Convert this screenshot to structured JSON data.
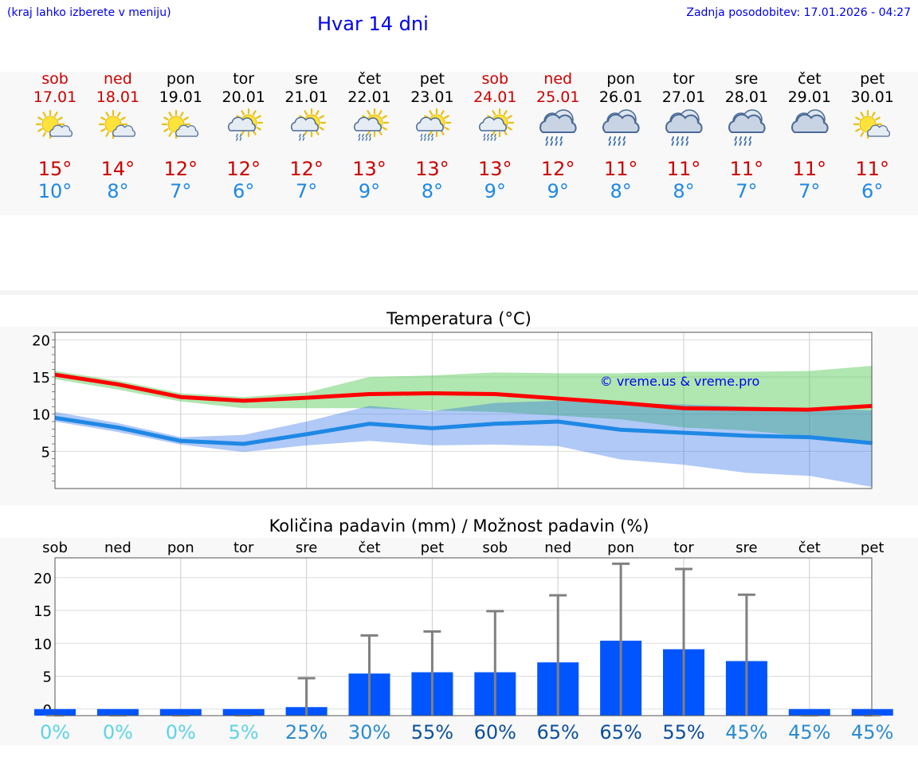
{
  "header": {
    "location_hint": "(kraj lahko izberete v meniju)",
    "title": "Hvar 14 dni",
    "updated": "Zadnja posodobitev: 17.01.2026 - 04:27"
  },
  "colors": {
    "weekend": "#cc0000",
    "weekday": "#000000",
    "max_temp": "#ff0000",
    "min_temp": "#1e88e5",
    "bar": "#0055ff",
    "link": "#0000ee"
  },
  "days": [
    {
      "name": "sob",
      "date": "17.01",
      "max": "15°",
      "min": "10°",
      "weekend": true,
      "icon": "sun-cloud-icon"
    },
    {
      "name": "ned",
      "date": "18.01",
      "max": "14°",
      "min": "8°",
      "weekend": true,
      "icon": "sun-cloud-icon"
    },
    {
      "name": "pon",
      "date": "19.01",
      "max": "12°",
      "min": "7°",
      "weekend": false,
      "icon": "sun-cloud-icon"
    },
    {
      "name": "tor",
      "date": "20.01",
      "max": "12°",
      "min": "6°",
      "weekend": false,
      "icon": "sun-cloud-light-rain-icon"
    },
    {
      "name": "sre",
      "date": "21.01",
      "max": "12°",
      "min": "7°",
      "weekend": false,
      "icon": "sun-cloud-light-rain-icon"
    },
    {
      "name": "čet",
      "date": "22.01",
      "max": "13°",
      "min": "9°",
      "weekend": false,
      "icon": "sun-cloud-rain-icon"
    },
    {
      "name": "pet",
      "date": "23.01",
      "max": "13°",
      "min": "8°",
      "weekend": false,
      "icon": "sun-cloud-rain-icon"
    },
    {
      "name": "sob",
      "date": "24.01",
      "max": "13°",
      "min": "9°",
      "weekend": true,
      "icon": "sun-cloud-rain-icon"
    },
    {
      "name": "ned",
      "date": "25.01",
      "max": "12°",
      "min": "9°",
      "weekend": true,
      "icon": "cloud-rain-icon"
    },
    {
      "name": "pon",
      "date": "26.01",
      "max": "11°",
      "min": "8°",
      "weekend": false,
      "icon": "cloud-rain-icon"
    },
    {
      "name": "tor",
      "date": "27.01",
      "max": "11°",
      "min": "8°",
      "weekend": false,
      "icon": "cloud-rain-icon"
    },
    {
      "name": "sre",
      "date": "28.01",
      "max": "11°",
      "min": "7°",
      "weekend": false,
      "icon": "cloud-rain-icon"
    },
    {
      "name": "čet",
      "date": "29.01",
      "max": "11°",
      "min": "7°",
      "weekend": false,
      "icon": "cloud-icon"
    },
    {
      "name": "pet",
      "date": "30.01",
      "max": "11°",
      "min": "6°",
      "weekend": false,
      "icon": "sun-cloud-icon"
    }
  ],
  "chart_data": [
    {
      "type": "line",
      "title": "Temperatura (°C)",
      "watermark": "© vreme.us & vreme.pro",
      "ylim": [
        0,
        21
      ],
      "yticks": [
        5,
        10,
        15,
        20
      ],
      "series": [
        {
          "name": "max",
          "values": [
            15.3,
            14.0,
            12.3,
            11.8,
            12.2,
            12.7,
            12.8,
            12.7,
            12.1,
            11.5,
            10.8,
            10.7,
            10.6,
            11.1
          ],
          "band_low": [
            14.7,
            13.3,
            11.7,
            10.8,
            10.8,
            10.8,
            10.5,
            10.3,
            9.8,
            9.3,
            8.2,
            7.8,
            7.0,
            6.0
          ],
          "band_high": [
            15.8,
            14.5,
            12.8,
            12.3,
            12.9,
            15.0,
            15.2,
            15.6,
            15.5,
            15.5,
            15.7,
            15.7,
            15.8,
            16.5
          ]
        },
        {
          "name": "min",
          "values": [
            9.5,
            8.2,
            6.4,
            6.0,
            7.3,
            8.7,
            8.1,
            8.7,
            9.0,
            7.9,
            7.5,
            7.1,
            6.9,
            6.1
          ],
          "band_low": [
            9.0,
            7.6,
            5.9,
            4.9,
            5.8,
            6.4,
            5.8,
            5.9,
            5.7,
            3.9,
            3.2,
            2.1,
            1.7,
            0.2
          ],
          "band_high": [
            10.3,
            8.8,
            6.9,
            7.2,
            9.0,
            11.1,
            10.4,
            11.5,
            11.8,
            11.5,
            11.3,
            11.0,
            10.8,
            10.5
          ]
        }
      ]
    },
    {
      "type": "bar",
      "title": "Količina padavin (mm) / Možnost padavin (%)",
      "categories": [
        "sob",
        "ned",
        "pon",
        "tor",
        "sre",
        "čet",
        "pet",
        "sob",
        "ned",
        "pon",
        "tor",
        "sre",
        "čet",
        "pet"
      ],
      "ylim": [
        -1,
        23
      ],
      "yticks": [
        0,
        5,
        10,
        15,
        20
      ],
      "values": [
        0,
        0,
        0,
        0,
        0.3,
        5.4,
        5.6,
        5.6,
        7.1,
        10.4,
        9.1,
        7.3,
        0,
        0
      ],
      "error_high": [
        0,
        0,
        0,
        0.1,
        4.7,
        11.2,
        11.8,
        14.9,
        17.3,
        22.1,
        21.3,
        17.4,
        0,
        0
      ],
      "probability": [
        "0%",
        "0%",
        "0%",
        "5%",
        "25%",
        "30%",
        "55%",
        "60%",
        "65%",
        "65%",
        "55%",
        "45%",
        "45%",
        "45%"
      ]
    }
  ]
}
